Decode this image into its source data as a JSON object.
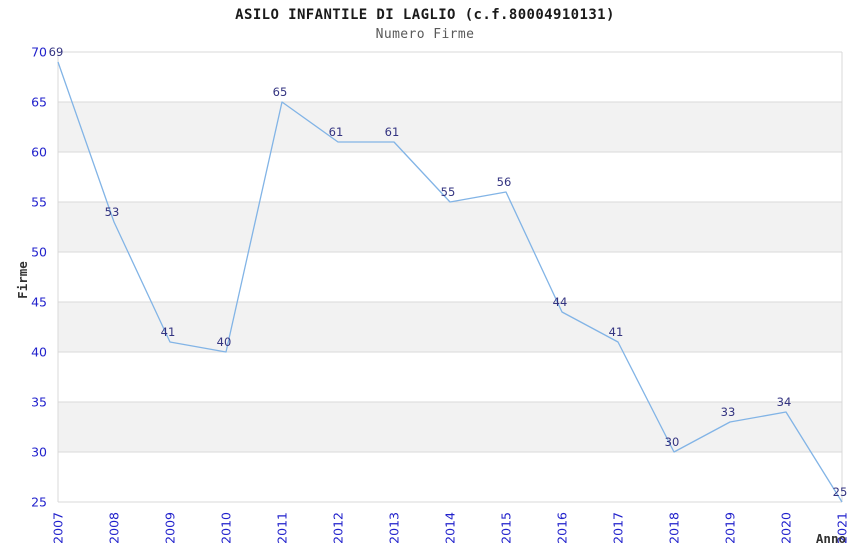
{
  "header": {
    "title": "ASILO INFANTILE DI LAGLIO (c.f.80004910131)",
    "subtitle": "Numero Firme"
  },
  "chart_data": {
    "type": "line",
    "title": "ASILO INFANTILE DI LAGLIO (c.f.80004910131)",
    "subtitle": "Numero Firme",
    "xlabel": "Anno",
    "ylabel": "Firme",
    "x": [
      "2007",
      "2008",
      "2009",
      "2010",
      "2011",
      "2012",
      "2013",
      "2014",
      "2015",
      "2016",
      "2017",
      "2018",
      "2019",
      "2020",
      "2021"
    ],
    "values": [
      69,
      53,
      41,
      40,
      65,
      61,
      61,
      55,
      56,
      44,
      41,
      30,
      33,
      34,
      25
    ],
    "ylim": [
      25,
      70
    ],
    "ytick_step": 5,
    "yticks": [
      25,
      30,
      35,
      40,
      45,
      50,
      55,
      60,
      65,
      70
    ],
    "grid": "horizontal gridlines with alternating shaded bands",
    "legend": "none",
    "point_markers": false,
    "data_labels": true,
    "colors": {
      "line": "#82b4e6",
      "tick_label": "#2222cc",
      "value_label": "#333380",
      "band": "#f2f2f2",
      "band_alt": "#ffffff",
      "grid": "#d9d9d9",
      "axis_title": "#333333",
      "title": "#1a1a1a",
      "subtitle": "#595959",
      "background": "#ffffff"
    }
  }
}
